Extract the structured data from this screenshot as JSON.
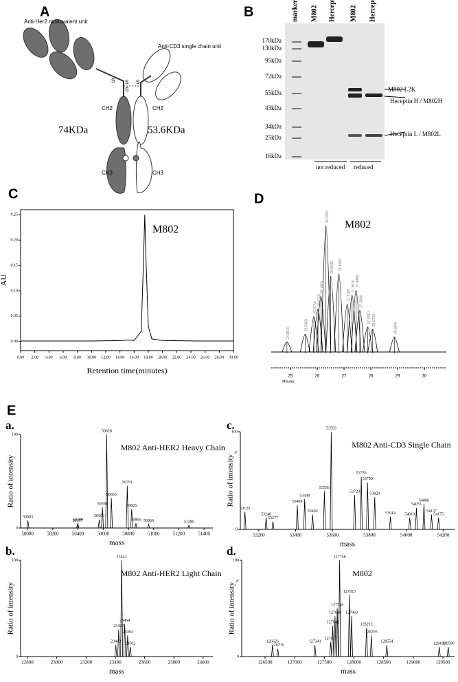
{
  "figure": {
    "panel_a": {
      "label": "A",
      "her2_unit": "Anti-Her2 monovalent unit",
      "cd3_unit": "Anti-CD3 single chain unit",
      "left_mass": "74KDa",
      "right_mass": "53.6KDa",
      "ch2_left": "CH2",
      "ch2_right": "CH2",
      "ch3_left": "CH3",
      "ch3_right": "CH3",
      "disulfides": [
        "S",
        "S",
        "S",
        "S"
      ]
    },
    "panel_b": {
      "label": "B",
      "lanes": [
        "marker",
        "M802",
        "Herceptin",
        "M802",
        "Herceptin"
      ],
      "markers": [
        "170kDa",
        "130kDa",
        "95kDa",
        "72kDa",
        "55kDa",
        "43kDa",
        "34kDa",
        "25kDa",
        "16kDa"
      ],
      "band_labels": [
        "M802 L2K",
        "Heceptin H / M802H",
        "Heceptin L / M802L"
      ],
      "groups": [
        "not reduced",
        "reduced"
      ]
    },
    "panel_e": {
      "label": "E"
    }
  },
  "chart_data": [
    {
      "type": "line",
      "label": "C",
      "annotation": "M802",
      "ylabel": "AU",
      "xlabel": "Retention time(minutes)",
      "xlim": [
        0,
        30
      ],
      "ylim": [
        -0.018,
        0.26
      ],
      "xticks": [
        {
          "value": 0,
          "label": "0.00"
        },
        {
          "value": 2,
          "label": "2.00"
        },
        {
          "value": 4,
          "label": "4.00"
        },
        {
          "value": 6,
          "label": "6.00"
        },
        {
          "value": 8,
          "label": "8.00"
        },
        {
          "value": 10,
          "label": "10.00"
        },
        {
          "value": 12,
          "label": "12.00"
        },
        {
          "value": 14,
          "label": "14.00"
        },
        {
          "value": 16,
          "label": "16.00"
        },
        {
          "value": 18,
          "label": "18.00"
        },
        {
          "value": 20,
          "label": "20.00"
        },
        {
          "value": 22,
          "label": "22.00"
        },
        {
          "value": 24,
          "label": "24.00"
        },
        {
          "value": 26,
          "label": "26.00"
        },
        {
          "value": 28,
          "label": "28.00"
        },
        {
          "value": 30,
          "label": "30.00"
        }
      ],
      "yticks": [
        {
          "value": 0,
          "label": "0.00"
        },
        {
          "value": 0.05,
          "label": "0.05"
        },
        {
          "value": 0.1,
          "label": "0.10"
        },
        {
          "value": 0.15,
          "label": "0.15"
        },
        {
          "value": 0.2,
          "label": "0.20"
        },
        {
          "value": 0.25,
          "label": "0.25"
        }
      ],
      "series": [
        {
          "color": "#000000",
          "x": [
            0,
            5,
            10,
            14.5,
            15,
            16,
            17,
            17.3,
            17.5,
            17.7,
            18,
            18.5,
            20,
            25,
            30
          ],
          "values": [
            0.001,
            0.001,
            0.001,
            0.002,
            0.003,
            0.002,
            0.02,
            0.15,
            0.25,
            0.15,
            0.03,
            0.005,
            0.002,
            0.001,
            0.001
          ]
        }
      ]
    },
    {
      "type": "chromatogram",
      "label": "D",
      "annotation": "M802",
      "xlabel": "Minutes",
      "xlim": [
        24.28,
        30.82
      ],
      "ylim": [
        0,
        110
      ],
      "xticks": [
        25,
        26,
        27,
        28,
        29,
        30
      ],
      "x": [
        24.867,
        25.546,
        25.873,
        26.026,
        26.137,
        26.325,
        26.504,
        26.806,
        27.118,
        27.301,
        27.448,
        27.588,
        27.881,
        28.07,
        28.88
      ],
      "x_labels": [
        "24.8670",
        "25.5460",
        "25.8730",
        "26.0260",
        "26.1370",
        "26.3250",
        "26.5040",
        "26.8060",
        "27.1180",
        "27.3010",
        "27.4480",
        "27.5880",
        "27.8810",
        "28.0700",
        "28.8800"
      ],
      "values": [
        8,
        14,
        28,
        34,
        44,
        100,
        60,
        62,
        38,
        45,
        49,
        33,
        20,
        18,
        12
      ]
    },
    {
      "type": "spectrum",
      "label": "a.",
      "title": "M802 Anti-HER2 Heavy Chain",
      "ylabel": "Ratio of intensity",
      "xlabel": "mass",
      "xlim": [
        49945,
        51470
      ],
      "ylim": [
        0,
        100
      ],
      "yticks": [
        0,
        100
      ],
      "xticks": [
        50000,
        50200,
        50400,
        50600,
        50800,
        51000,
        51200,
        51400
      ],
      "x": [
        50003,
        50397,
        50399,
        50569,
        50594,
        50628,
        50665,
        50791,
        50826,
        50860,
        50960,
        51280
      ],
      "values": [
        8,
        4,
        5,
        9,
        22,
        100,
        32,
        45,
        20,
        5,
        4,
        3
      ]
    },
    {
      "type": "spectrum",
      "label": "b.",
      "title": "M802 Anti-HER2 Light Chain",
      "ylabel": "Ratio of intensity",
      "xlabel": "mass",
      "xlim": [
        22753,
        24066
      ],
      "ylim": [
        0,
        100
      ],
      "yticks": [
        0,
        100
      ],
      "xticks": [
        22800,
        23000,
        23200,
        23400,
        23600,
        23800,
        24000
      ],
      "x": [
        23403,
        23423,
        23443,
        23464,
        23484,
        23502
      ],
      "values": [
        12,
        28,
        100,
        34,
        22,
        10
      ]
    },
    {
      "type": "spectrum",
      "label": "c.",
      "title": "M802 Anti-CD3 Single Chain",
      "ylabel": "Ratio of intensity",
      "y_unit": "%",
      "xlabel": "mass",
      "xlim": [
        53100,
        54262
      ],
      "ylim": [
        0,
        100
      ],
      "yticks": [
        0,
        100
      ],
      "xticks": [
        53200,
        53400,
        53600,
        53800,
        54000,
        54200
      ],
      "x": [
        53125,
        53240,
        53277,
        53409,
        53449,
        53492,
        53556,
        53593,
        53720,
        53756,
        53790,
        53829,
        53914,
        54019,
        54055,
        54096,
        54137,
        54175
      ],
      "values": [
        18,
        12,
        8,
        25,
        31,
        15,
        39,
        100,
        35,
        54,
        48,
        33,
        13,
        12,
        22,
        26,
        15,
        12
      ]
    },
    {
      "type": "spectrum",
      "label": "d.",
      "title": "M802",
      "ylabel": "Ratio of intensity",
      "y_unit": "%",
      "xlabel": "mass",
      "xlim": [
        126106,
        129697
      ],
      "ylim": [
        0,
        100
      ],
      "yticks": [
        0,
        100
      ],
      "xticks": [
        126500,
        127000,
        127500,
        128000,
        128500,
        129000,
        129500
      ],
      "x": [
        126626,
        126715,
        127341,
        127607,
        127642,
        127680,
        127718,
        127758,
        127923,
        127960,
        128212,
        128293,
        128554,
        129439,
        129590
      ],
      "values": [
        12,
        8,
        12,
        15,
        32,
        42,
        50,
        100,
        64,
        42,
        30,
        22,
        12,
        10,
        10
      ]
    }
  ]
}
